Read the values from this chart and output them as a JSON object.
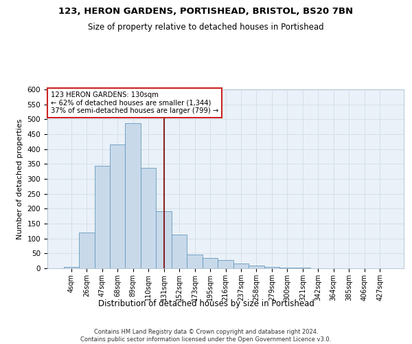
{
  "title_line1": "123, HERON GARDENS, PORTISHEAD, BRISTOL, BS20 7BN",
  "title_line2": "Size of property relative to detached houses in Portishead",
  "xlabel": "Distribution of detached houses by size in Portishead",
  "ylabel": "Number of detached properties",
  "footer_line1": "Contains HM Land Registry data © Crown copyright and database right 2024.",
  "footer_line2": "Contains public sector information licensed under the Open Government Licence v3.0.",
  "bar_labels": [
    "4sqm",
    "26sqm",
    "47sqm",
    "68sqm",
    "89sqm",
    "110sqm",
    "131sqm",
    "152sqm",
    "173sqm",
    "195sqm",
    "216sqm",
    "237sqm",
    "258sqm",
    "279sqm",
    "300sqm",
    "321sqm",
    "342sqm",
    "364sqm",
    "385sqm",
    "406sqm",
    "427sqm"
  ],
  "bar_values": [
    5,
    120,
    345,
    415,
    487,
    337,
    192,
    112,
    47,
    35,
    27,
    17,
    9,
    4,
    2,
    2,
    1,
    1,
    1,
    1,
    1
  ],
  "bar_color": "#c8d9ea",
  "bar_edge_color": "#6699bb",
  "grid_color": "#d0dde8",
  "bg_color": "#eaf1f8",
  "property_line_x": 6.0,
  "annotation_text_line1": "123 HERON GARDENS: 130sqm",
  "annotation_text_line2": "← 62% of detached houses are smaller (1,344)",
  "annotation_text_line3": "37% of semi-detached houses are larger (799) →",
  "annotation_box_color": "white",
  "annotation_border_color": "#cc2222",
  "vline_color": "#882222",
  "ylim": [
    0,
    600
  ],
  "yticks": [
    0,
    50,
    100,
    150,
    200,
    250,
    300,
    350,
    400,
    450,
    500,
    550,
    600
  ]
}
